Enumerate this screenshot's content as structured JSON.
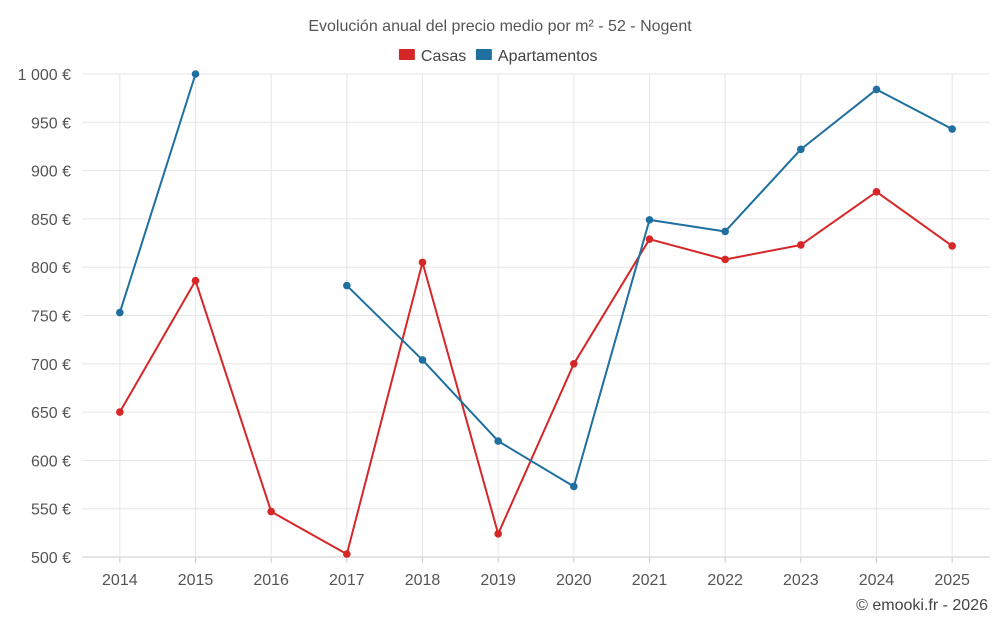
{
  "chart_data": {
    "type": "line",
    "title": "Evolución anual del precio medio por m² - 52 - Nogent",
    "categories": [
      "2014",
      "2015",
      "2016",
      "2017",
      "2018",
      "2019",
      "2020",
      "2021",
      "2022",
      "2023",
      "2024",
      "2025"
    ],
    "y_tick_labels": [
      "500 €",
      "550 €",
      "600 €",
      "650 €",
      "700 €",
      "750 €",
      "800 €",
      "850 €",
      "900 €",
      "950 €",
      "1 000 €"
    ],
    "y_ticks": [
      500,
      550,
      600,
      650,
      700,
      750,
      800,
      850,
      900,
      950,
      1000
    ],
    "ylim": [
      500,
      1000
    ],
    "grid": true,
    "legend_position": "top-center",
    "series": [
      {
        "name": "Casas",
        "color": "#d62728",
        "values": [
          650,
          786,
          547,
          503,
          805,
          524,
          700,
          829,
          808,
          823,
          878,
          822
        ]
      },
      {
        "name": "Apartamentos",
        "color": "#1f6fa0",
        "values": [
          753,
          1000,
          null,
          781,
          704,
          620,
          573,
          849,
          837,
          922,
          984,
          943
        ]
      }
    ]
  },
  "credit": "© emooki.fr - 2026"
}
